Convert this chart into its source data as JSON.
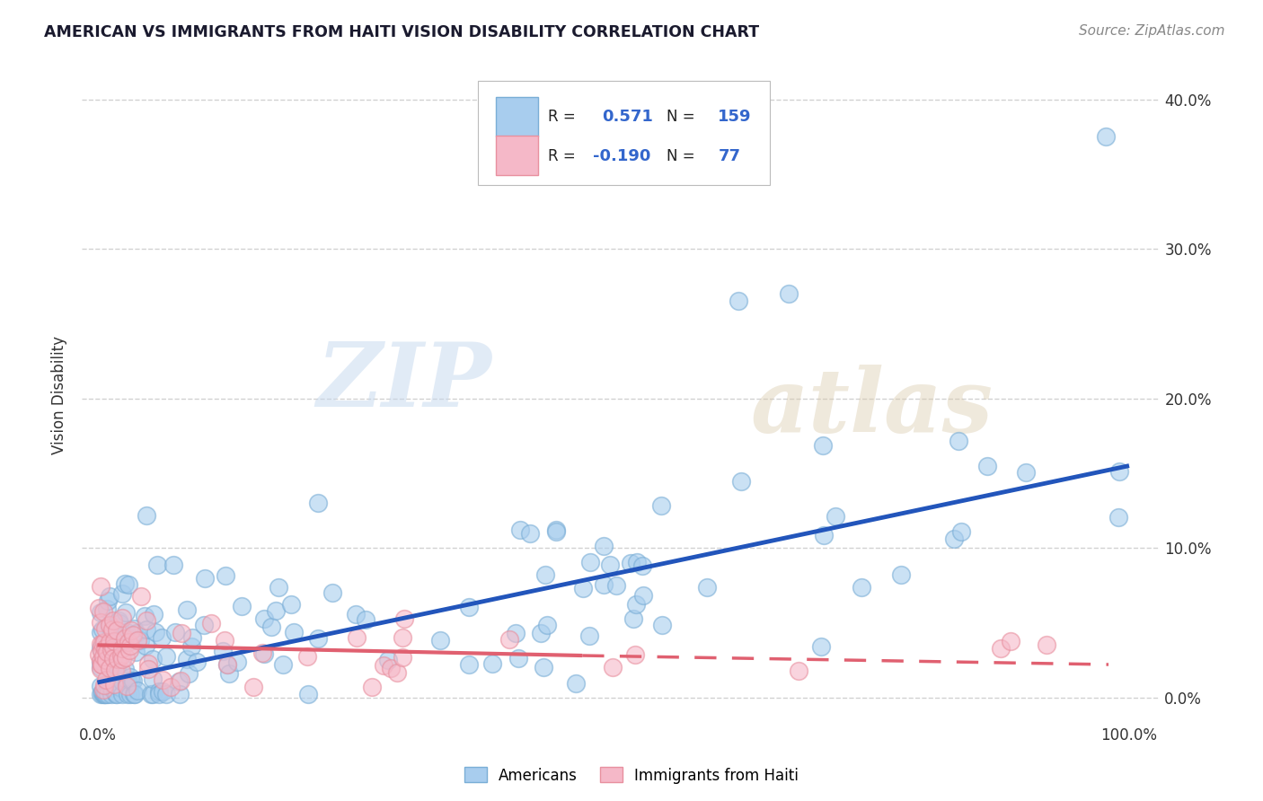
{
  "title": "AMERICAN VS IMMIGRANTS FROM HAITI VISION DISABILITY CORRELATION CHART",
  "source": "Source: ZipAtlas.com",
  "ylabel": "Vision Disability",
  "ytick_positions": [
    0,
    10,
    20,
    30,
    40
  ],
  "ytick_labels": [
    "0.0%",
    "10.0%",
    "20.0%",
    "30.0%",
    "40.0%"
  ],
  "xtick_positions": [
    0,
    10,
    20,
    30,
    40,
    50,
    60,
    70,
    80,
    90,
    100
  ],
  "xtick_labels": [
    "0.0%",
    "",
    "",
    "",
    "",
    "",
    "",
    "",
    "",
    "",
    "100.0%"
  ],
  "watermark_zip": "ZIP",
  "watermark_atlas": "atlas",
  "legend": {
    "blue_r": "0.571",
    "blue_n": "159",
    "pink_r": "-0.190",
    "pink_n": "77"
  },
  "blue_color": "#A8CDEE",
  "pink_color": "#F5B8C8",
  "blue_edge_color": "#7AAED6",
  "pink_edge_color": "#E8909F",
  "blue_line_color": "#2255BB",
  "pink_line_color": "#E06070",
  "background_color": "#FFFFFF",
  "grid_color": "#CCCCCC",
  "title_color": "#1a1a2e",
  "source_color": "#888888",
  "axis_color": "#333333"
}
